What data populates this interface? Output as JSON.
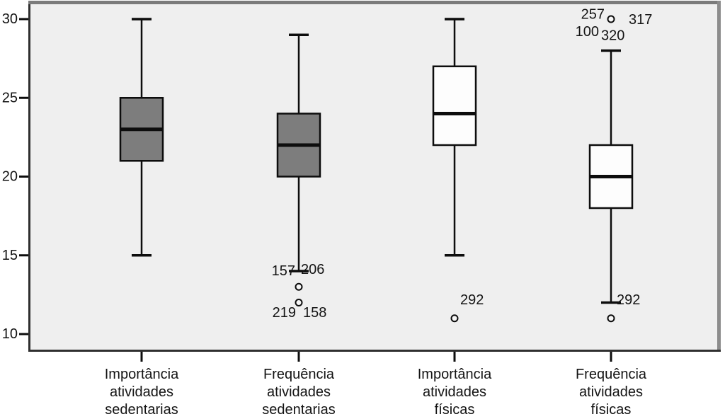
{
  "colors": {
    "page_bg": "#ffffff",
    "plot_bg": "#efefef",
    "frame_top": "#7b7b7b",
    "frame_right": "#8c8c8c",
    "frame_dark": "#2f2f2f",
    "line": "#0d0d0d",
    "text": "#141414",
    "outlier_fill": "#f7f7f7",
    "box_gray": "#7d7d7d",
    "box_white": "#fdfdfd"
  },
  "chart_data": {
    "type": "boxplot",
    "title": "",
    "xlabel": "",
    "ylabel": "",
    "ylim": [
      9,
      30.9
    ],
    "yticks": [
      30,
      25,
      20,
      15,
      10
    ],
    "grid": false,
    "legend": "none",
    "categories": [
      {
        "label_lines": [
          "Importância",
          "atividades",
          "sedentarias"
        ],
        "fill": "#7d7d7d",
        "whisker_low": 15,
        "q1": 21,
        "median": 23,
        "q3": 25,
        "whisker_high": 30,
        "outliers": [],
        "annotations": []
      },
      {
        "label_lines": [
          "Frequência",
          "atividades",
          "sedentarias"
        ],
        "fill": "#7d7d7d",
        "whisker_low": 14,
        "q1": 20,
        "median": 22,
        "q3": 24,
        "whisker_high": 29,
        "outliers": [
          13,
          12
        ],
        "annotations": [
          {
            "text": "157",
            "value": 14.0,
            "dx": -5,
            "anchor": "end"
          },
          {
            "text": "206",
            "value": 14.1,
            "dx": 3,
            "anchor": "start"
          },
          {
            "text": "219",
            "value": 11.35,
            "dx": -4,
            "anchor": "end"
          },
          {
            "text": "158",
            "value": 11.35,
            "dx": 6,
            "anchor": "start"
          }
        ]
      },
      {
        "label_lines": [
          "Importância",
          "atividades",
          "físicas"
        ],
        "fill": "#fdfdfd",
        "whisker_low": 15,
        "q1": 22,
        "median": 24,
        "q3": 27,
        "whisker_high": 30,
        "outliers": [
          11
        ],
        "annotations": [
          {
            "text": "292",
            "value": 12.15,
            "dx": 8,
            "anchor": "start"
          }
        ]
      },
      {
        "label_lines": [
          "Frequência",
          "atividades",
          "físicas"
        ],
        "fill": "#fdfdfd",
        "whisker_low": 12,
        "q1": 18,
        "median": 20,
        "q3": 22,
        "whisker_high": 28,
        "outliers": [
          30,
          11
        ],
        "annotations": [
          {
            "text": "257",
            "value": 30.3,
            "dx": -9,
            "anchor": "end"
          },
          {
            "text": "317",
            "value": 29.95,
            "dx": 25,
            "anchor": "start"
          },
          {
            "text": "100",
            "value": 29.2,
            "dx": -17,
            "anchor": "end"
          },
          {
            "text": "320",
            "value": 28.95,
            "dx": -14,
            "anchor": "start"
          },
          {
            "text": "292",
            "value": 12.15,
            "dx": 8,
            "anchor": "start"
          }
        ]
      }
    ]
  }
}
